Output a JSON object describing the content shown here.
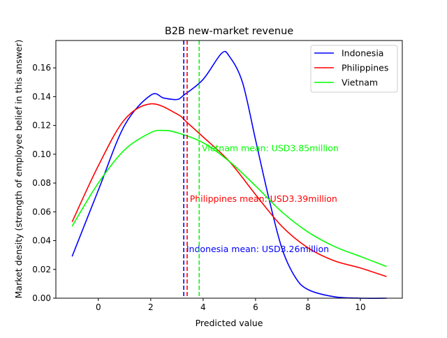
{
  "chart_data": {
    "type": "line",
    "title": "B2B new-market revenue",
    "xlabel": "Predicted value",
    "ylabel": "Market density (strength of employee belief in this answer)",
    "xlim": [
      -1.62,
      11.6
    ],
    "ylim": [
      0,
      0.179
    ],
    "xticks": [
      0,
      2,
      4,
      6,
      8,
      10
    ],
    "xtick_labels": [
      "0",
      "2",
      "4",
      "6",
      "8",
      "10"
    ],
    "yticks": [
      0,
      0.02,
      0.04,
      0.06,
      0.08,
      0.1,
      0.12,
      0.14,
      0.16
    ],
    "ytick_labels": [
      "0.00",
      "0.02",
      "0.04",
      "0.06",
      "0.08",
      "0.10",
      "0.12",
      "0.14",
      "0.16"
    ],
    "grid": false,
    "legend_position": "top-right",
    "series": [
      {
        "name": "Indonesia",
        "color": "#0000ff",
        "x": [
          -1,
          0,
          1,
          2,
          2.5,
          3,
          3.26,
          4,
          4.7,
          5,
          5.5,
          6,
          6.5,
          7,
          7.5,
          8,
          9,
          10,
          11
        ],
        "y": [
          0.029,
          0.075,
          0.12,
          0.141,
          0.139,
          0.138,
          0.141,
          0.152,
          0.17,
          0.168,
          0.15,
          0.11,
          0.07,
          0.035,
          0.015,
          0.006,
          0.001,
          0.0,
          0.0
        ],
        "mean": 3.26,
        "annotation": "Indonesia mean: USD3.26million",
        "annotation_at": [
          3.36,
          0.034
        ]
      },
      {
        "name": "Philippines",
        "color": "#ff0000",
        "x": [
          -1,
          0,
          1,
          2,
          3,
          3.39,
          4,
          5,
          6,
          7,
          8,
          9,
          10,
          11
        ],
        "y": [
          0.053,
          0.092,
          0.124,
          0.135,
          0.128,
          0.122,
          0.112,
          0.095,
          0.072,
          0.05,
          0.035,
          0.026,
          0.021,
          0.015
        ],
        "mean": 3.39,
        "annotation": "Philippines mean: USD3.39million",
        "annotation_at": [
          3.49,
          0.069
        ]
      },
      {
        "name": "Vietnam",
        "color": "#00ff00",
        "x": [
          -1,
          0,
          1,
          2,
          2.5,
          3,
          4,
          5,
          6,
          7,
          8,
          9,
          10,
          11
        ],
        "y": [
          0.05,
          0.08,
          0.103,
          0.115,
          0.1165,
          0.115,
          0.108,
          0.095,
          0.078,
          0.06,
          0.046,
          0.036,
          0.029,
          0.022
        ],
        "mean": 3.85,
        "annotation": "Vietnam mean: USD3.85million",
        "annotation_at": [
          3.95,
          0.104
        ]
      }
    ]
  }
}
